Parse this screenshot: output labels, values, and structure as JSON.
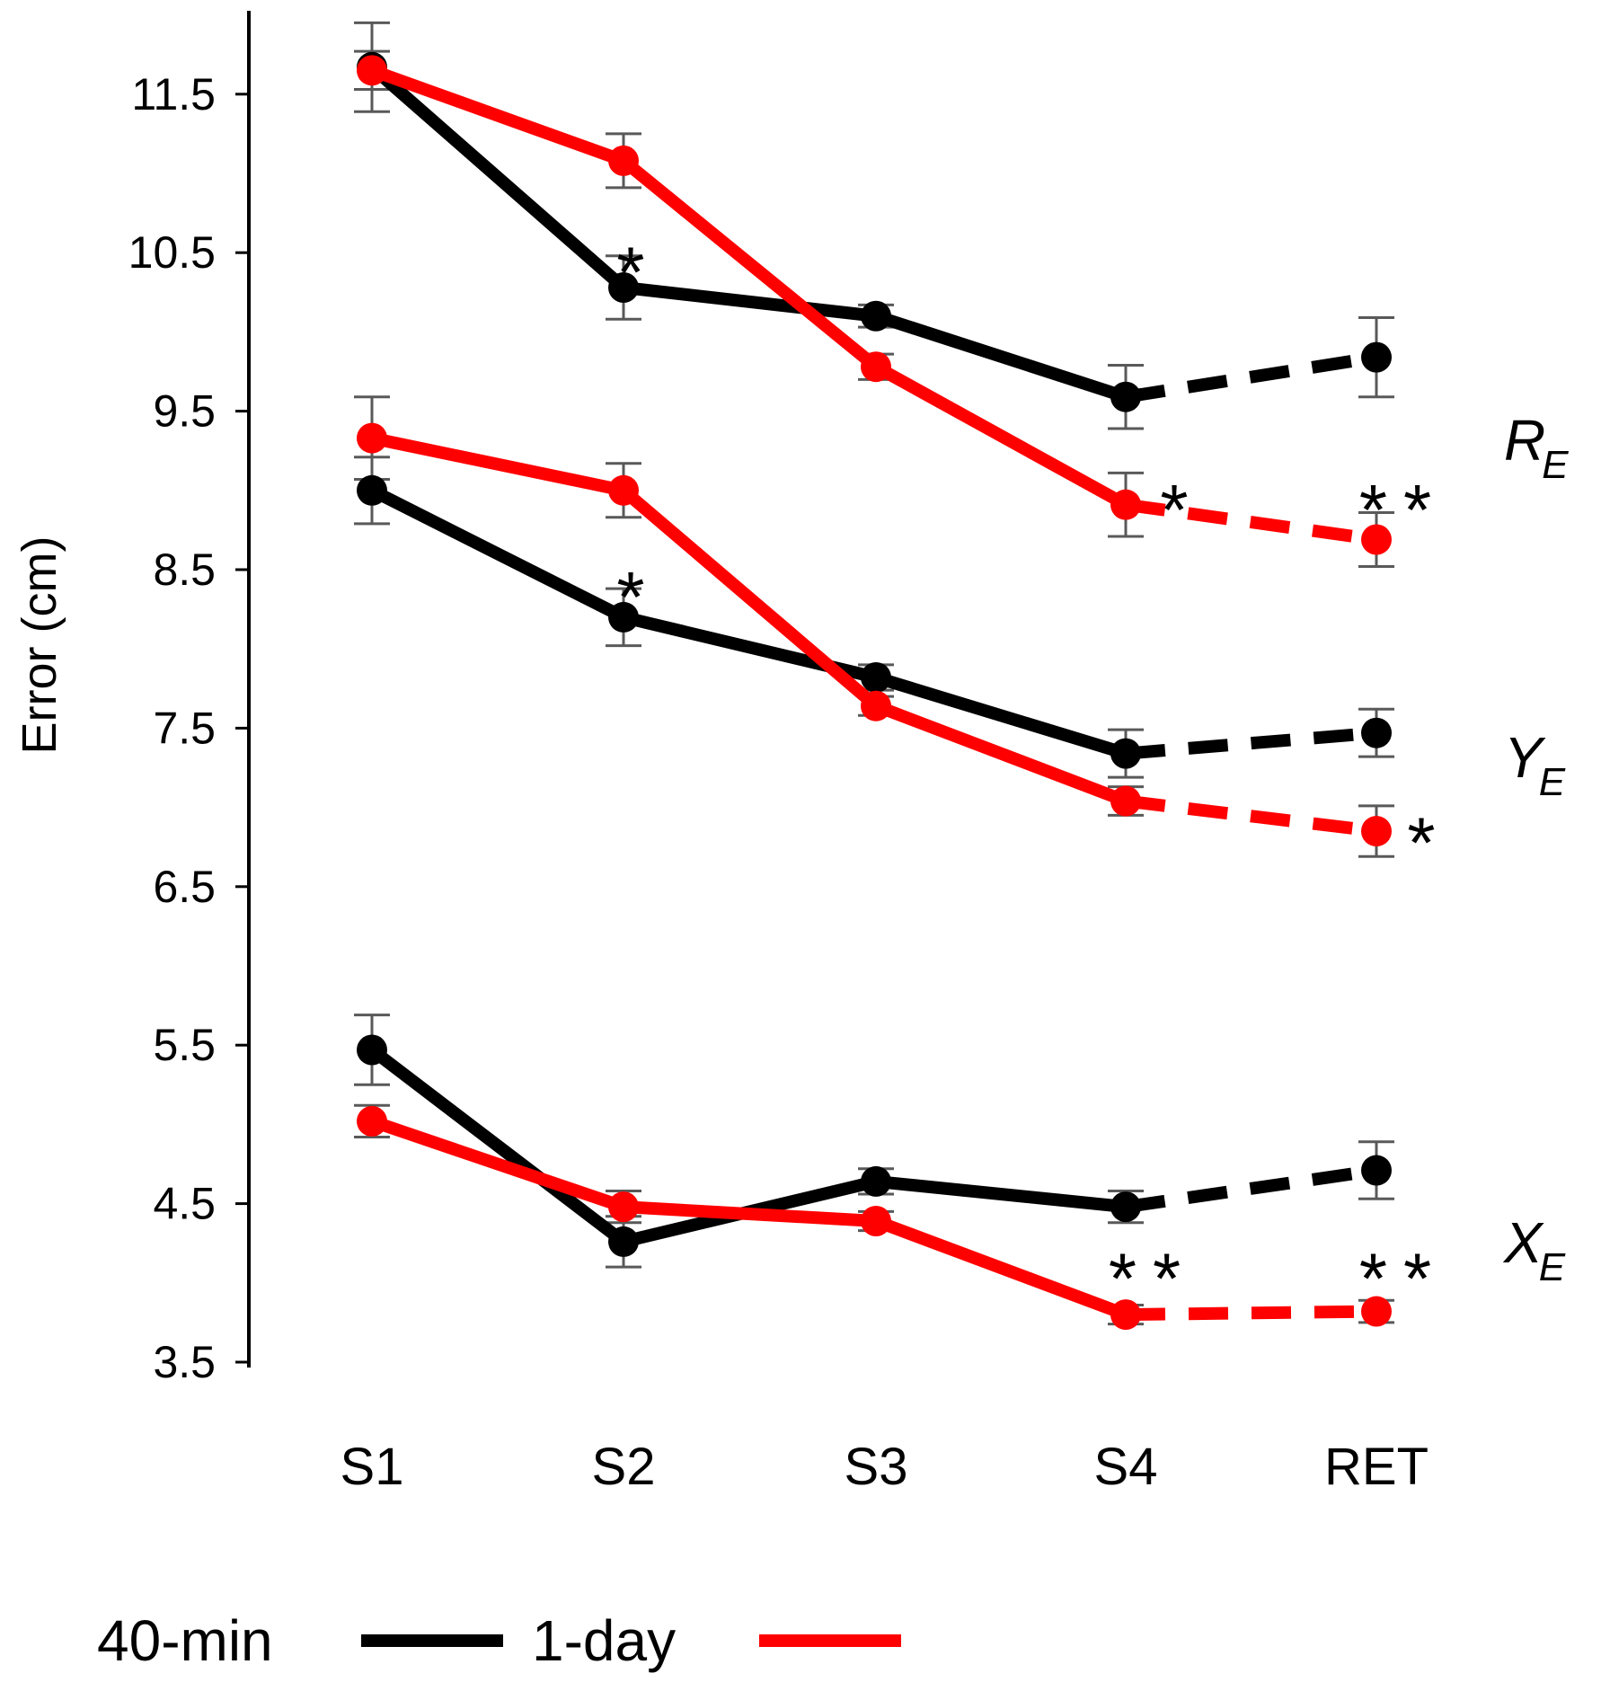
{
  "chart_data": {
    "type": "line",
    "title": "",
    "ylabel": "Error (cm)",
    "xlabel": "",
    "categories": [
      "S1",
      "S2",
      "S3",
      "S4",
      "RET"
    ],
    "yticks": [
      "3.5",
      "4.5",
      "5.5",
      "6.5",
      "7.5",
      "8.5",
      "9.5",
      "10.5",
      "11.5"
    ],
    "ylim": [
      3.5,
      11.9
    ],
    "legend": [
      {
        "label": "40-min",
        "color": "#000000"
      },
      {
        "label": "1-day",
        "color": "#ff0000"
      }
    ],
    "groups": [
      {
        "metric": "R",
        "subscript": "E",
        "series": [
          {
            "name": "40-min",
            "color": "#000000",
            "values": [
              11.67,
              10.28,
              10.1,
              9.59,
              9.84
            ],
            "err": [
              0.28,
              0.2,
              0.07,
              0.2,
              0.25
            ]
          },
          {
            "name": "1-day",
            "color": "#ff0000",
            "values": [
              11.65,
              11.08,
              9.78,
              8.91,
              8.69
            ],
            "err": [
              0.12,
              0.17,
              0.08,
              0.2,
              0.17
            ]
          }
        ],
        "significance": [
          {
            "category": "S2",
            "value": 10.55,
            "text": "*"
          },
          {
            "category": "S4",
            "value": 9.05,
            "text": "*"
          },
          {
            "category": "RET",
            "value": 9.05,
            "text": "**"
          }
        ]
      },
      {
        "metric": "Y",
        "subscript": "E",
        "series": [
          {
            "name": "40-min",
            "color": "#000000",
            "values": [
              9.0,
              8.2,
              7.82,
              7.34,
              7.47
            ],
            "err": [
              0.21,
              0.18,
              0.08,
              0.15,
              0.15
            ]
          },
          {
            "name": "1-day",
            "color": "#ff0000",
            "values": [
              9.33,
              9.0,
              7.64,
              7.04,
              6.85
            ],
            "err": [
              0.26,
              0.17,
              0.06,
              0.09,
              0.16
            ]
          }
        ],
        "significance": [
          {
            "category": "S2",
            "value": 8.5,
            "text": "*"
          },
          {
            "category": "RET",
            "value": 6.95,
            "text": "*"
          }
        ]
      },
      {
        "metric": "X",
        "subscript": "E",
        "series": [
          {
            "name": "40-min",
            "color": "#000000",
            "values": [
              5.47,
              4.26,
              4.64,
              4.48,
              4.71
            ],
            "err": [
              0.22,
              0.16,
              0.08,
              0.1,
              0.18
            ]
          },
          {
            "name": "1-day",
            "color": "#ff0000",
            "values": [
              5.02,
              4.48,
              4.39,
              3.8,
              3.82
            ],
            "err": [
              0.1,
              0.1,
              0.06,
              0.06,
              0.07
            ]
          }
        ],
        "significance": [
          {
            "category": "S4",
            "value": 4.2,
            "text": "**"
          },
          {
            "category": "RET",
            "value": 4.2,
            "text": "**"
          }
        ]
      }
    ],
    "dashed_segment": "S4-RET",
    "grid": false
  }
}
